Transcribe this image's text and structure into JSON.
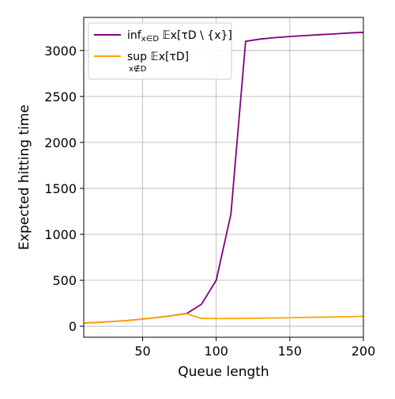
{
  "chart_data": {
    "type": "line",
    "title": "",
    "xlabel": "Queue length",
    "ylabel": "Expected hitting time",
    "xlim": [
      10,
      200
    ],
    "ylim": [
      -120,
      3360
    ],
    "xticks": [
      50,
      100,
      150,
      200
    ],
    "yticks": [
      0,
      500,
      1000,
      1500,
      2000,
      2500,
      3000
    ],
    "grid": true,
    "legend_position": "top-left",
    "series": [
      {
        "name": "inf_{x∈D} 𝔼_x[τ_{D \\ {x}}]",
        "color": "#800080",
        "x": [
          10,
          20,
          30,
          40,
          50,
          60,
          70,
          80,
          90,
          100,
          110,
          120,
          130,
          140,
          150,
          160,
          170,
          180,
          190,
          200
        ],
        "y": [
          35,
          42,
          52,
          63,
          78,
          95,
          115,
          138,
          240,
          500,
          1220,
          3100,
          3125,
          3140,
          3152,
          3162,
          3172,
          3180,
          3190,
          3198
        ]
      },
      {
        "name": "sup_{x∉D} 𝔼_x[τ_D]",
        "color": "#ffa500",
        "x": [
          10,
          20,
          30,
          40,
          50,
          60,
          70,
          80,
          90,
          100,
          110,
          120,
          130,
          140,
          150,
          160,
          170,
          180,
          190,
          200
        ],
        "y": [
          35,
          42,
          52,
          63,
          78,
          95,
          115,
          135,
          85,
          83,
          84,
          86,
          88,
          90,
          92,
          95,
          98,
          101,
          104,
          108
        ]
      }
    ]
  },
  "legend": {
    "series0_main": "inf",
    "series0_sub": "x∈D",
    "series0_rest": " 𝔼x[τD \\ {x}]",
    "series1_main": "sup 𝔼x[τD]",
    "series1_sub": "x∉D"
  }
}
